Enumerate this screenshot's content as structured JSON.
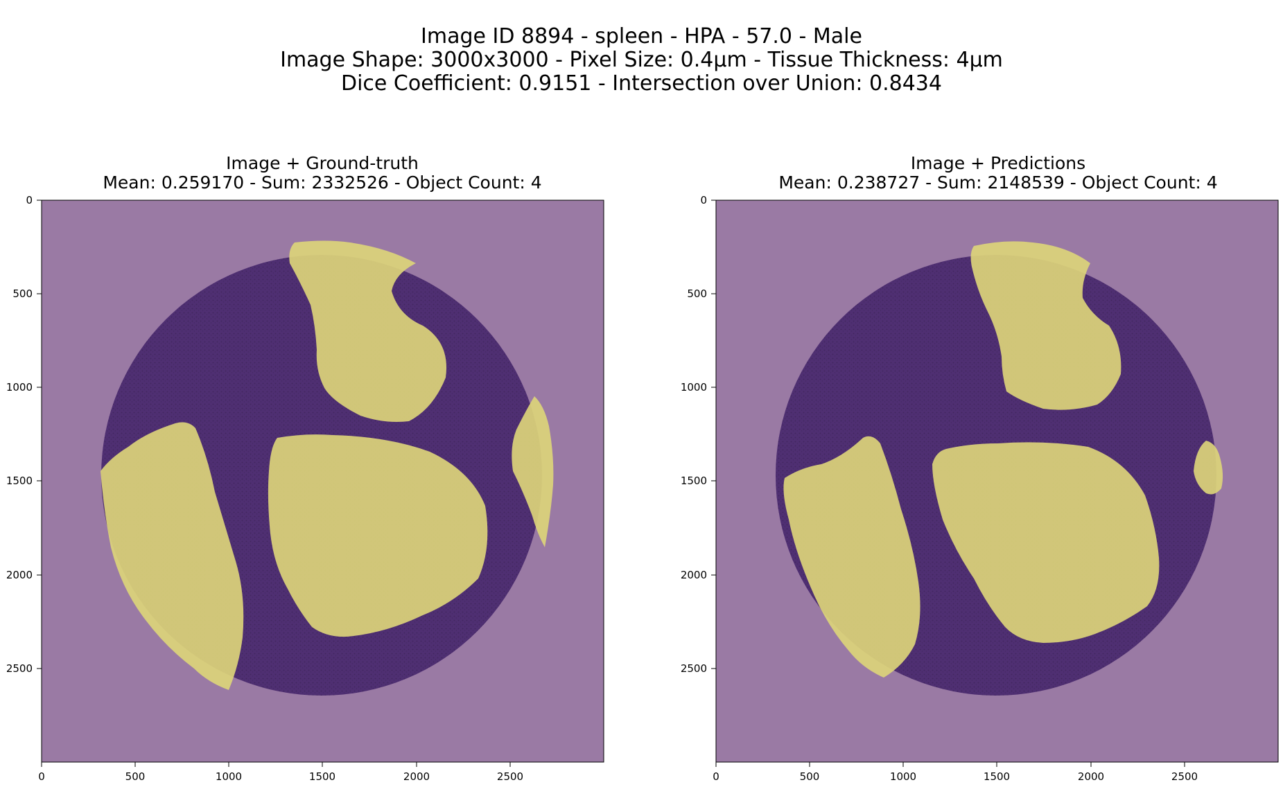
{
  "figure": {
    "suptitle_lines": [
      "Image ID 8894 - spleen - HPA - 57.0 - Male",
      "Image Shape: 3000x3000 - Pixel Size: 0.4µm - Tissue Thickness: 4µm",
      "Dice Coefficient: 0.9151 - Intersection over Union: 0.8434"
    ]
  },
  "panels": [
    {
      "title_line1": "Image + Ground-truth",
      "title_line2": "Mean: 0.259170 - Sum: 2332526 - Object Count: 4",
      "x_ticks": [
        "0",
        "500",
        "1000",
        "1500",
        "2000",
        "2500"
      ],
      "y_ticks": [
        "0",
        "500",
        "1000",
        "1500",
        "2000",
        "2500"
      ]
    },
    {
      "title_line1": "Image + Predictions",
      "title_line2": "Mean: 0.238727 - Sum: 2148539 - Object Count: 4",
      "x_ticks": [
        "0",
        "500",
        "1000",
        "1500",
        "2000",
        "2500"
      ],
      "y_ticks": [
        "0",
        "500",
        "1000",
        "1500",
        "2000",
        "2500"
      ]
    }
  ],
  "colors": {
    "background_overlay": "#9a7aa4",
    "tissue": "#4f2f72",
    "mask": "#dcd47a"
  }
}
